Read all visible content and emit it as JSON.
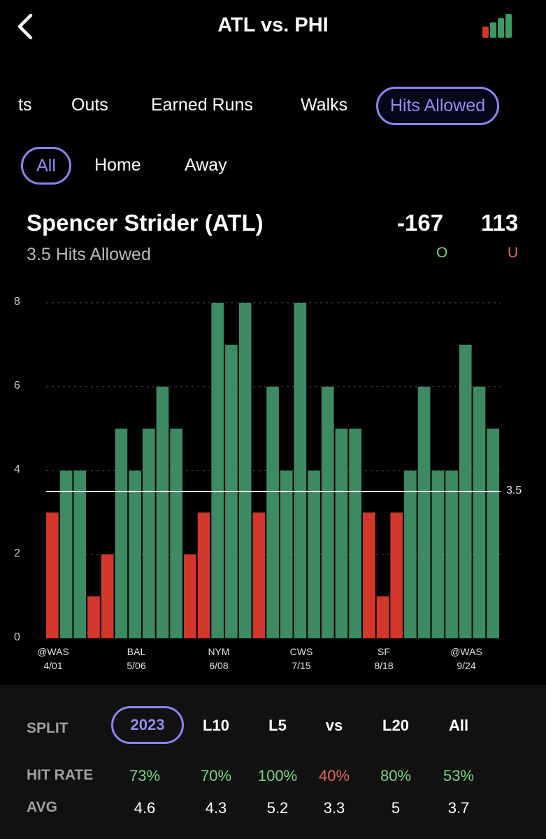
{
  "header": {
    "title": "ATL vs. PHI",
    "back_icon": "chevron-left-icon",
    "stats_icon": "bar-chart-icon"
  },
  "tabs": [
    "ts",
    "Outs",
    "Earned Runs",
    "Walks",
    "Hits Allowed"
  ],
  "subtabs": [
    "All",
    "Home",
    "Away"
  ],
  "player": {
    "name": "Spencer Strider (ATL)",
    "market": "3.5 Hits Allowed"
  },
  "odds": {
    "over": "-167",
    "under": "113",
    "over_tag": "O",
    "under_tag": "U"
  },
  "colors": {
    "over": "#3d8a63",
    "under": "#d2372c",
    "accent": "#8a86f0",
    "over_text": "#78d47e",
    "under_text": "#e46a5c"
  },
  "chart_data": {
    "type": "bar",
    "values": [
      3,
      4,
      4,
      1,
      2,
      5,
      4,
      5,
      6,
      5,
      2,
      3,
      8,
      7,
      8,
      3,
      6,
      4,
      8,
      4,
      6,
      5,
      5,
      3,
      1,
      3,
      4,
      6,
      4,
      4,
      7,
      6,
      5
    ],
    "ylim": [
      0,
      8
    ],
    "yticks": [
      "0",
      "2",
      "4",
      "6",
      "8"
    ],
    "line": {
      "value": 3.5,
      "label": "3.5"
    },
    "x_labels": [
      {
        "team": "@WAS",
        "date": "4/01"
      },
      {
        "team": "BAL",
        "date": "5/06"
      },
      {
        "team": "NYM",
        "date": "6/08"
      },
      {
        "team": "CWS",
        "date": "7/15"
      },
      {
        "team": "SF",
        "date": "8/18"
      },
      {
        "team": "@WAS",
        "date": "9/24"
      }
    ]
  },
  "bottom": {
    "split_label": "SPLIT",
    "splits": [
      "2023",
      "L10",
      "L5",
      "vs",
      "L20",
      "All"
    ],
    "hit_rate_label": "HIT RATE",
    "hit_rates": [
      "73%",
      "70%",
      "100%",
      "40%",
      "80%",
      "53%"
    ],
    "avg_label": "AVG",
    "avgs": [
      "4.6",
      "4.3",
      "5.2",
      "3.3",
      "5",
      "3.7"
    ]
  }
}
